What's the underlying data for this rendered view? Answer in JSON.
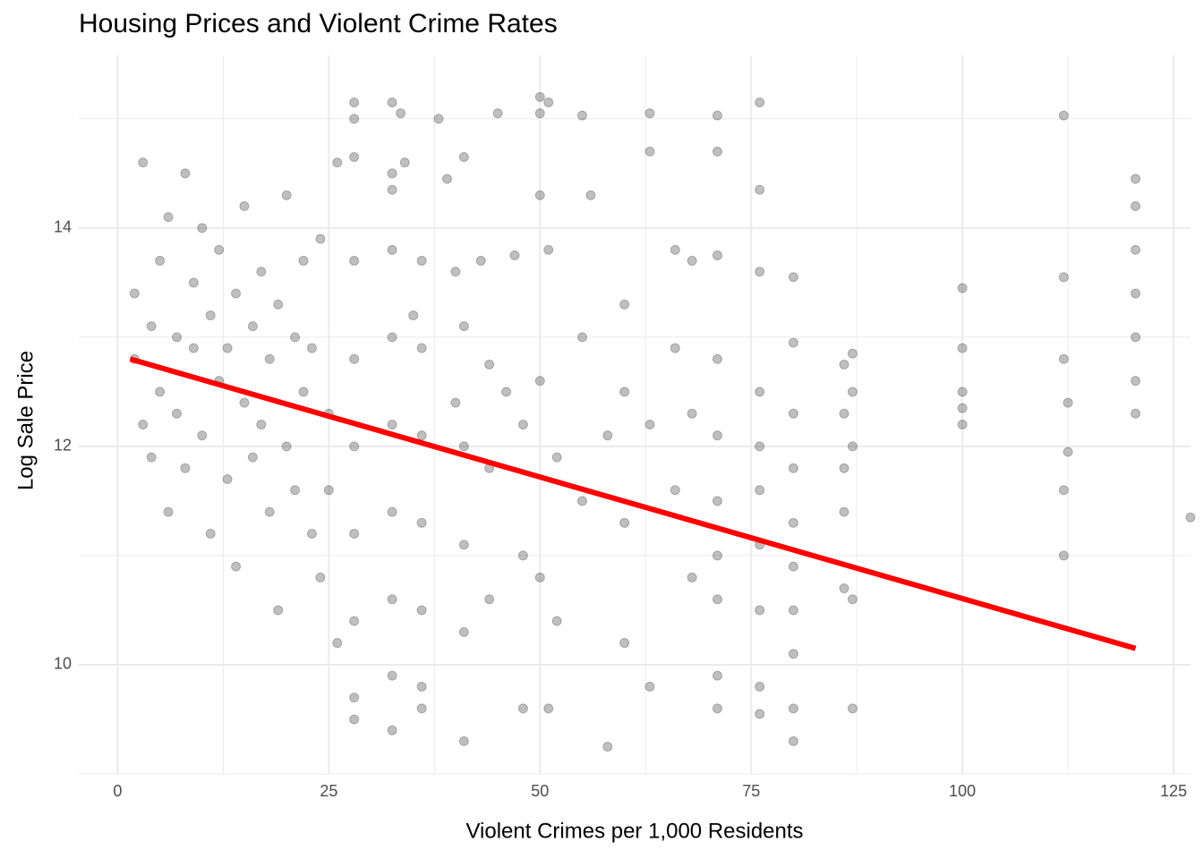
{
  "chart_data": {
    "type": "scatter",
    "title": "Housing Prices and Violent Crime Rates",
    "x_label": "Violent Crimes per 1,000 Residents",
    "y_label": "Log Sale Price",
    "xlim": [
      -4.6,
      127
    ],
    "ylim": [
      9.0,
      15.58
    ],
    "xticks": [
      0,
      25,
      50,
      75,
      100,
      125
    ],
    "yticks": [
      10,
      12,
      14
    ],
    "xminor": [
      12.5,
      37.5,
      62.5,
      87.5,
      112.5
    ],
    "yminor": [
      9,
      11,
      13,
      15
    ],
    "grid": true,
    "grid_color": "#ebebeb",
    "points": {
      "color": "#000000",
      "opacity": 0.25,
      "x": [
        2,
        2,
        3,
        3,
        4,
        4,
        5,
        5,
        6,
        6,
        7,
        7,
        8,
        8,
        9,
        9,
        10,
        10,
        11,
        11,
        12,
        12,
        13,
        13,
        14,
        14,
        15,
        15,
        16,
        16,
        17,
        17,
        18,
        18,
        19,
        19,
        20,
        20,
        21,
        21,
        22,
        22,
        23,
        23,
        24,
        24,
        25,
        25,
        26,
        26,
        28,
        28,
        28,
        28,
        28,
        28,
        28,
        28,
        28,
        28,
        32.5,
        32.5,
        32.5,
        32.5,
        32.5,
        32.5,
        32.5,
        32.5,
        32.5,
        32.5,
        33.5,
        34,
        35,
        36,
        36,
        36,
        36,
        36,
        36,
        36,
        38,
        39,
        40,
        40,
        41,
        41,
        41,
        41,
        41,
        41,
        43,
        44,
        44,
        44,
        45,
        46,
        47,
        48,
        48,
        48,
        50,
        50,
        50,
        50,
        50,
        51,
        51,
        51,
        52,
        52,
        55,
        55,
        55,
        56,
        58,
        58,
        60,
        60,
        60,
        60,
        63,
        63,
        63,
        63,
        66,
        66,
        66,
        68,
        68,
        68,
        71,
        71,
        71,
        71,
        71,
        71,
        71,
        71,
        71,
        71,
        76,
        76,
        76,
        76,
        76,
        76,
        76,
        76,
        76,
        76,
        80,
        80,
        80,
        80,
        80,
        80,
        80,
        80,
        80,
        80,
        86,
        86,
        86,
        86,
        86,
        87,
        87,
        87,
        87,
        87,
        100,
        100,
        100,
        100,
        100,
        112,
        112,
        112,
        112,
        112,
        112.5,
        112.5,
        120.5,
        120.5,
        120.5,
        120.5,
        120.5,
        120.5,
        120.5,
        127
      ],
      "values": [
        12.8,
        13.4,
        12.2,
        14.6,
        13.1,
        11.9,
        13.7,
        12.5,
        14.1,
        11.4,
        13.0,
        12.3,
        14.5,
        11.8,
        13.5,
        12.9,
        12.1,
        14.0,
        13.2,
        11.2,
        12.6,
        13.8,
        11.7,
        12.9,
        13.4,
        10.9,
        12.4,
        14.2,
        11.9,
        13.1,
        12.2,
        13.6,
        11.4,
        12.8,
        13.3,
        10.5,
        12.0,
        14.3,
        11.6,
        13.0,
        12.5,
        13.7,
        11.2,
        12.9,
        10.8,
        13.9,
        12.3,
        11.6,
        14.6,
        10.2,
        15.15,
        15.0,
        14.65,
        13.7,
        12.8,
        12.0,
        11.2,
        10.4,
        9.7,
        9.5,
        15.15,
        14.5,
        14.35,
        13.8,
        13.0,
        12.2,
        11.4,
        10.6,
        9.9,
        9.4,
        15.05,
        14.6,
        13.2,
        13.7,
        12.9,
        12.1,
        11.3,
        10.5,
        9.8,
        9.6,
        15.0,
        14.45,
        13.6,
        12.4,
        14.65,
        13.1,
        12.0,
        11.1,
        10.3,
        9.3,
        13.7,
        12.75,
        11.8,
        10.6,
        15.05,
        12.5,
        13.75,
        12.2,
        11.0,
        9.6,
        15.2,
        15.05,
        14.3,
        12.6,
        10.8,
        15.15,
        13.8,
        9.6,
        11.9,
        10.4,
        15.03,
        13.0,
        11.5,
        14.3,
        12.1,
        9.25,
        13.3,
        12.5,
        11.3,
        10.2,
        15.05,
        14.7,
        12.2,
        9.8,
        13.8,
        12.9,
        11.6,
        13.7,
        12.3,
        10.8,
        15.03,
        14.7,
        13.75,
        12.8,
        12.1,
        11.5,
        11.0,
        10.6,
        9.9,
        9.6,
        15.15,
        14.35,
        13.6,
        12.5,
        12.0,
        11.6,
        11.1,
        10.5,
        9.8,
        9.55,
        13.55,
        12.95,
        12.3,
        11.8,
        11.3,
        10.9,
        10.5,
        10.1,
        9.6,
        9.3,
        12.75,
        12.3,
        11.8,
        11.4,
        10.7,
        12.85,
        12.5,
        12.0,
        10.6,
        9.6,
        13.45,
        12.9,
        12.5,
        12.35,
        12.2,
        15.03,
        13.55,
        12.8,
        11.6,
        11.0,
        12.4,
        11.95,
        14.45,
        14.2,
        13.8,
        13.4,
        13.0,
        12.6,
        12.3,
        11.35
      ]
    },
    "fit_line": {
      "color": "#ff0000",
      "x": [
        1.5,
        120.5
      ],
      "values": [
        12.8,
        10.15
      ]
    }
  }
}
